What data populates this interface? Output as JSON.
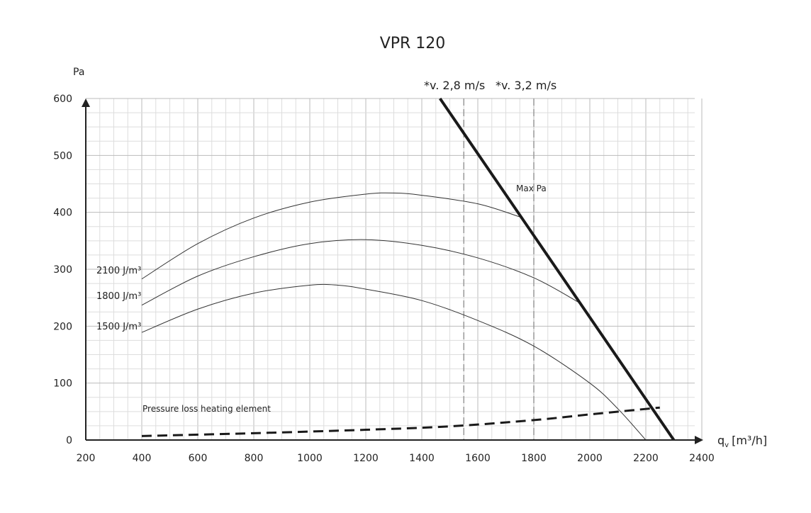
{
  "chart_data": {
    "type": "line",
    "title": "VPR 120",
    "xlabel": "q_v [m³/h]",
    "xlabel_main": "q",
    "xlabel_sub": "v",
    "xlabel_unit": "[m³/h]",
    "ylabel": "Pa",
    "xlim": [
      200,
      2400
    ],
    "ylim": [
      0,
      600
    ],
    "xticks": [
      200,
      400,
      600,
      800,
      1000,
      1200,
      1400,
      1600,
      1800,
      2000,
      2200,
      2400
    ],
    "yticks": [
      0,
      100,
      200,
      300,
      400,
      500,
      600
    ],
    "grid": true,
    "series": [
      {
        "name": "2100 J/m³",
        "style": "thin",
        "x": [
          400,
          600,
          800,
          1000,
          1200,
          1300,
          1400,
          1600,
          1750
        ],
        "y": [
          283,
          345,
          390,
          418,
          432,
          434,
          430,
          415,
          392
        ]
      },
      {
        "name": "1800 J/m³",
        "style": "thin",
        "x": [
          400,
          600,
          800,
          1000,
          1200,
          1400,
          1600,
          1800,
          1960
        ],
        "y": [
          237,
          288,
          322,
          345,
          352,
          342,
          320,
          285,
          242
        ]
      },
      {
        "name": "1500 J/m³",
        "style": "thin",
        "x": [
          400,
          600,
          800,
          1000,
          1100,
          1200,
          1400,
          1600,
          1800,
          2000,
          2100,
          2200
        ],
        "y": [
          189,
          230,
          258,
          272,
          272,
          265,
          245,
          210,
          165,
          100,
          55,
          0
        ]
      },
      {
        "name": "Max Pa",
        "style": "thick",
        "x": [
          1465,
          2300
        ],
        "y": [
          600,
          0
        ]
      },
      {
        "name": "Pressure loss heating element",
        "style": "dashed",
        "x": [
          400,
          800,
          1200,
          1500,
          1800,
          2000,
          2250
        ],
        "y": [
          7,
          12,
          18,
          24,
          35,
          45,
          57
        ]
      }
    ],
    "annotations": [
      {
        "text": "*v. 2,8 m/s",
        "x": 1550
      },
      {
        "text": "*v. 3,2 m/s",
        "x": 1800
      }
    ]
  }
}
